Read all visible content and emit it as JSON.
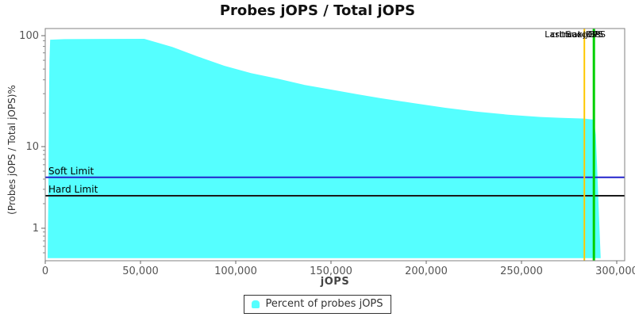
{
  "title": "Probes jOPS / Total jOPS",
  "chart_data": {
    "type": "area",
    "title": "Probes jOPS / Total jOPS",
    "xlabel": "jOPS",
    "ylabel": "(Probes jOPS / Total jOPS)%",
    "x_axis": {
      "min": 0,
      "max": 300000,
      "tick_values": [
        0,
        50000,
        100000,
        150000,
        200000,
        250000,
        300000
      ],
      "tick_labels": [
        "0",
        "50,000",
        "100,000",
        "150,000",
        "200,000",
        "250,000",
        "300,000"
      ]
    },
    "y_axis": {
      "scale": "log",
      "tick_values": [
        100,
        10,
        1
      ],
      "tick_labels": [
        "100",
        "10",
        "1"
      ],
      "minor_tick_values": [
        90,
        80,
        70,
        60,
        50,
        40,
        30,
        20,
        9,
        8,
        7,
        6,
        5,
        4,
        3,
        2,
        0.9,
        0.8,
        0.7,
        0.6,
        0.5
      ],
      "approx_min": 0.43,
      "approx_max": 110
    },
    "series": [
      {
        "name": "Percent of probes jOPS",
        "color": "#55FFFF",
        "points": [
          [
            1250,
            0.43
          ],
          [
            1600,
            2
          ],
          [
            1900,
            20
          ],
          [
            2200,
            60
          ],
          [
            2600,
            92
          ],
          [
            10000,
            93
          ],
          [
            30000,
            93.5
          ],
          [
            52000,
            93.7
          ],
          [
            66700,
            79
          ],
          [
            80000,
            65
          ],
          [
            94000,
            53.5
          ],
          [
            108000,
            46
          ],
          [
            122000,
            41
          ],
          [
            136000,
            36
          ],
          [
            150000,
            32.7
          ],
          [
            164000,
            29.6
          ],
          [
            176000,
            27.3
          ],
          [
            193000,
            24.7
          ],
          [
            210000,
            22.4
          ],
          [
            226000,
            20.7
          ],
          [
            243000,
            19.4
          ],
          [
            260000,
            18.5
          ],
          [
            270000,
            18.2
          ],
          [
            283000,
            17.9
          ],
          [
            288000,
            17.5
          ],
          [
            289000,
            12.8
          ],
          [
            290000,
            3.7
          ],
          [
            290800,
            1.2
          ],
          [
            291600,
            0.43
          ]
        ]
      }
    ],
    "baseline": 0.43,
    "hlines": [
      {
        "label": "Soft Limit",
        "value": 4.2,
        "color": "#2222CC"
      },
      {
        "label": "Hard Limit",
        "value": 2.5,
        "color": "#1A1A1A"
      }
    ],
    "vlines": [
      {
        "value": 283000,
        "color": "#FFC800"
      },
      {
        "value": 288000,
        "color": "#00D000"
      }
    ],
    "annotations": [
      {
        "text": "Last Success"
      },
      {
        "text": "critical-jOPS"
      },
      {
        "text": "max-jOPS"
      }
    ],
    "legend": {
      "position": "bottom-center",
      "items": [
        {
          "label": "Percent of probes jOPS",
          "color": "#55FFFF"
        }
      ]
    }
  }
}
